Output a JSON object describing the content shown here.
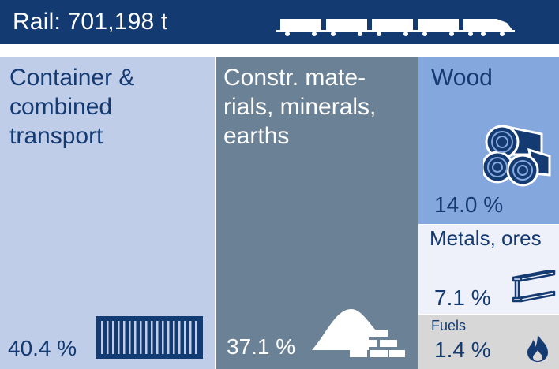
{
  "header": {
    "title": "Rail: 701,198 t",
    "train_icon": "freight-train-icon"
  },
  "colors": {
    "header_bg": "#143a72",
    "text": "#143a72",
    "container": "#c0cde9",
    "construction": "#6b8196",
    "wood": "#84a7dd",
    "metals": "#eef1f9",
    "fuels": "#d7d7d7"
  },
  "chart_data": {
    "type": "treemap",
    "title": "Rail: 701,198 t",
    "unit": "%",
    "categories": [
      "Container & combined transport",
      "Constr. materials, minerals, earths",
      "Wood",
      "Metals, ores",
      "Fuels"
    ],
    "values": [
      40.4,
      37.1,
      14.0,
      7.1,
      1.4
    ],
    "tiles": [
      {
        "key": "container",
        "label": "Container &\ncombined\ntransport",
        "value": 40.4,
        "value_text": "40.4 %",
        "icon": "shipping-container-icon"
      },
      {
        "key": "construction",
        "label": "Constr. mate-\nrials, minerals,\nearths",
        "value": 37.1,
        "value_text": "37.1 %",
        "icon": "sand-pile-bricks-icon"
      },
      {
        "key": "wood",
        "label": "Wood",
        "value": 14.0,
        "value_text": "14.0 %",
        "icon": "logs-icon"
      },
      {
        "key": "metals",
        "label": "Metals, ores",
        "value": 7.1,
        "value_text": "7.1 %",
        "icon": "steel-beam-icon"
      },
      {
        "key": "fuels",
        "label": "Fuels",
        "value": 1.4,
        "value_text": "1.4 %",
        "icon": "flame-icon"
      }
    ]
  }
}
